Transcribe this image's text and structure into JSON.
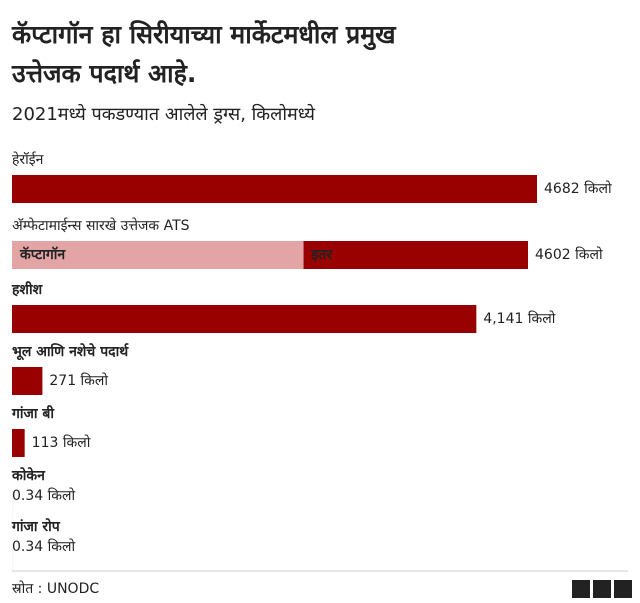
{
  "chart_data": {
    "type": "bar",
    "title": [
      "कॅप्टागॉन हा सिरीयाच्या मार्केटमधील प्रमुख",
      "उत्तेजक पदार्थ आहे."
    ],
    "subtitle": "2021मध्ये पकडण्यात आलेले ड्रग्स, किलोमध्ये",
    "categories": [
      "हेरॉईन",
      "अ‍ॅम्फेटामाईन्स सारखे उत्तेजक ATS",
      "हशीश",
      "भूल आणि नशेचे पदार्थ",
      "गांजा बी",
      "कोकेन",
      "गांजा रोप"
    ],
    "values": [
      4682,
      4602,
      4141,
      271,
      113,
      0.34,
      0.34
    ],
    "value_labels": [
      "4682 किलो",
      "4602 किलो",
      "4,141 किलो",
      "271 किलो",
      "113 किलो",
      "0.34 किलो",
      "0.34 किलो"
    ],
    "color": "#990000",
    "segments": {
      "category": 1,
      "parts": [
        {
          "name": "कॅप्टागॉन",
          "color": "#e3a4a6",
          "value": 2600
        },
        {
          "name": "इतर",
          "color": "#990000",
          "value": 2002
        }
      ]
    },
    "xlim": [
      0,
      4682
    ],
    "source": "स्रोत : UNODC",
    "logo": [
      "B",
      "B",
      "C"
    ]
  }
}
